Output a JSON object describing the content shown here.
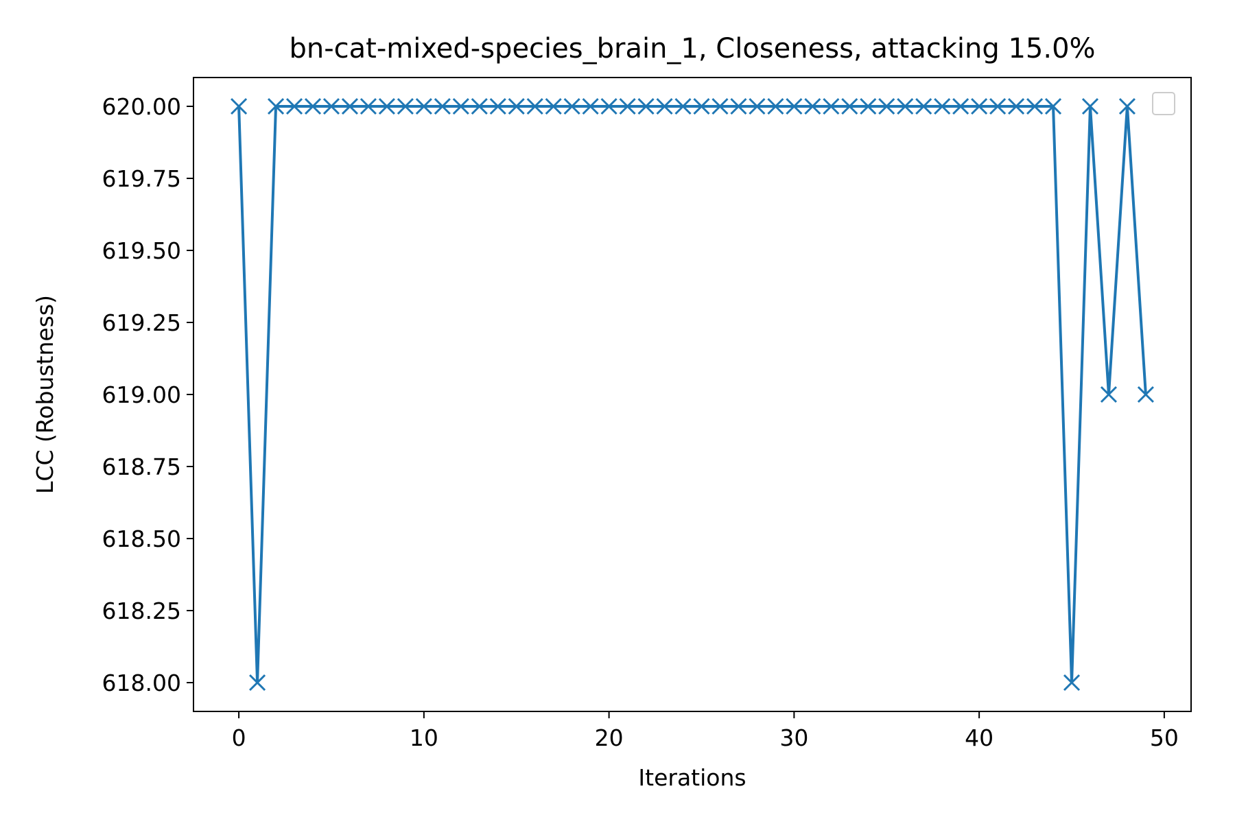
{
  "chart_data": {
    "type": "line",
    "title": "bn-cat-mixed-species_brain_1, Closeness, attacking 15.0%",
    "xlabel": "Iterations",
    "ylabel": "LCC (Robustness)",
    "xlim": [
      -2.45,
      51.45
    ],
    "ylim": [
      617.9,
      620.1
    ],
    "xticks": [
      0,
      10,
      20,
      30,
      40,
      50
    ],
    "xtick_labels": [
      "0",
      "10",
      "20",
      "30",
      "40",
      "50"
    ],
    "yticks": [
      618.0,
      618.25,
      618.5,
      618.75,
      619.0,
      619.25,
      619.5,
      619.75,
      620.0
    ],
    "ytick_labels": [
      "618.00",
      "618.25",
      "618.50",
      "618.75",
      "619.00",
      "619.25",
      "619.50",
      "619.75",
      "620.00"
    ],
    "grid": false,
    "legend": {
      "placement": "top-right",
      "entries": []
    },
    "series": [
      {
        "marker": "x",
        "color": "#1f77b4",
        "x": [
          0,
          1,
          2,
          3,
          4,
          5,
          6,
          7,
          8,
          9,
          10,
          11,
          12,
          13,
          14,
          15,
          16,
          17,
          18,
          19,
          20,
          21,
          22,
          23,
          24,
          25,
          26,
          27,
          28,
          29,
          30,
          31,
          32,
          33,
          34,
          35,
          36,
          37,
          38,
          39,
          40,
          41,
          42,
          43,
          44,
          45,
          46,
          47,
          48,
          49
        ],
        "y": [
          620,
          618,
          620,
          620,
          620,
          620,
          620,
          620,
          620,
          620,
          620,
          620,
          620,
          620,
          620,
          620,
          620,
          620,
          620,
          620,
          620,
          620,
          620,
          620,
          620,
          620,
          620,
          620,
          620,
          620,
          620,
          620,
          620,
          620,
          620,
          620,
          620,
          620,
          620,
          620,
          620,
          620,
          620,
          620,
          620,
          618,
          620,
          619,
          620,
          619
        ]
      }
    ]
  }
}
